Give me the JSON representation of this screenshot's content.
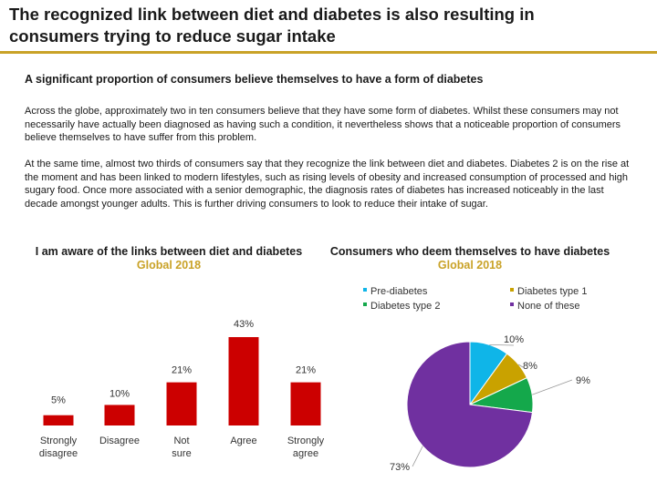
{
  "header": {
    "title_line1": "The recognized link between diet and diabetes is also resulting in",
    "title_line2": "consumers trying to reduce sugar intake",
    "accent_color": "#c9a227"
  },
  "body": {
    "subheading": "A significant proportion of consumers believe themselves to have a form of diabetes",
    "paragraph1": "Across the globe, approximately two in ten consumers believe that they have some form of diabetes. Whilst these consumers may not necessarily have actually been diagnosed as having such a condition, it nevertheless shows that a noticeable proportion of consumers believe themselves to have suffer from this problem.",
    "paragraph2": "At the same time, almost two thirds of consumers say that they recognize the link between diet and diabetes. Diabetes 2 is on the rise at the moment and has been linked to modern lifestyles, such as rising levels of obesity and increased consumption of processed and high sugary food. Once more associated with a senior demographic, the diagnosis rates of diabetes has increased noticeably in the last decade amongst younger adults. This is further driving consumers to look to reduce their intake of sugar."
  },
  "chart_data": [
    {
      "type": "bar",
      "title": "I am aware of the links between diet and diabetes",
      "subtitle": "Global 2018",
      "categories": [
        "Strongly disagree",
        "Disagree",
        "Not sure",
        "Agree",
        "Strongly agree"
      ],
      "values": [
        5,
        10,
        21,
        43,
        21
      ],
      "value_labels": [
        "5%",
        "10%",
        "21%",
        "43%",
        "21%"
      ],
      "unit": "%",
      "ylim": [
        0,
        43
      ],
      "bar_color": "#cc0000",
      "grid": false
    },
    {
      "type": "pie",
      "title": "Consumers who deem themselves to have diabetes",
      "subtitle": "Global 2018",
      "legend_position": "top",
      "slices": [
        {
          "name": "Pre-diabetes",
          "value": 10,
          "label": "10%",
          "color": "#0fb5e8"
        },
        {
          "name": "Diabetes type 1",
          "value": 8,
          "label": "8%",
          "color": "#c9a200"
        },
        {
          "name": "Diabetes type 2",
          "value": 9,
          "label": "9%",
          "color": "#14a84b"
        },
        {
          "name": "None of these",
          "value": 73,
          "label": "73%",
          "color": "#7030a0"
        }
      ]
    }
  ]
}
